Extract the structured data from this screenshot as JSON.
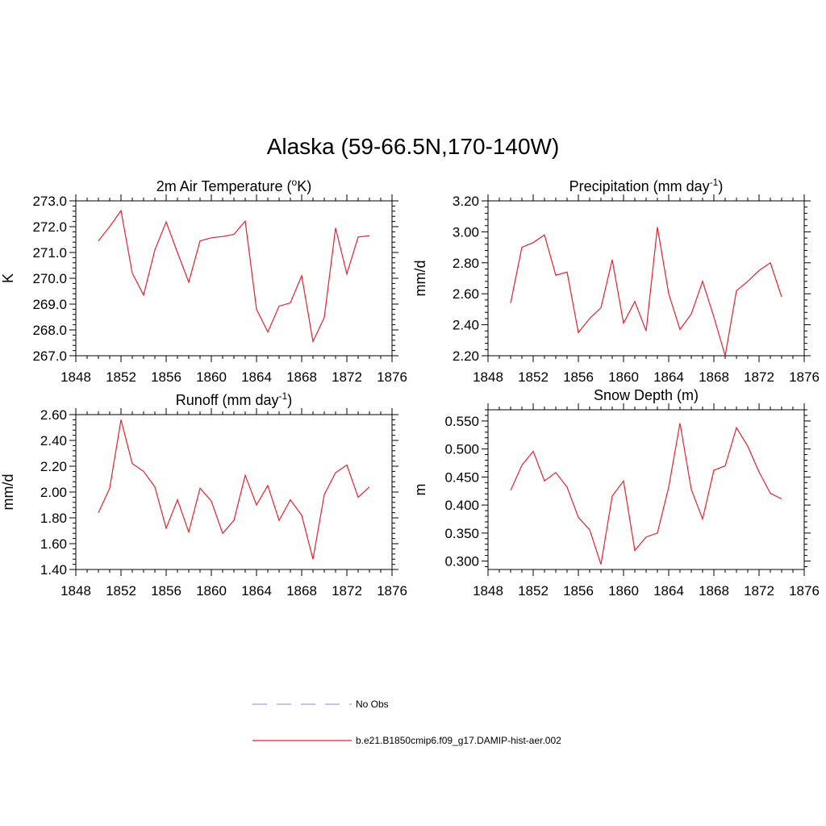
{
  "title": "Alaska (59-66.5N,170-140W)",
  "colors": {
    "model_line": "#e8202a",
    "obs_line": "#9aa3ee",
    "axis": "#000000"
  },
  "legend": {
    "entries": [
      {
        "label": "No Obs",
        "style": "dashed",
        "color": "#9aa3ee"
      },
      {
        "label": "b.e21.B1850cmip6.f09_g17.DAMIP-hist-aer.002",
        "style": "solid",
        "color": "#e8202a"
      }
    ]
  },
  "chart_data": [
    {
      "type": "line",
      "title": "2m Air Temperature (",
      "title_sup": "o",
      "title_after": "K)",
      "ylabel": "K",
      "xlim": [
        1848,
        1876
      ],
      "ylim": [
        267.0,
        273.0
      ],
      "xticks": [
        1848,
        1852,
        1856,
        1860,
        1864,
        1868,
        1872,
        1876
      ],
      "yticks": [
        "267.0",
        "268.0",
        "269.0",
        "270.0",
        "271.0",
        "272.0",
        "273.0"
      ],
      "x": [
        1850,
        1851,
        1852,
        1853,
        1854,
        1855,
        1856,
        1857,
        1858,
        1859,
        1860,
        1861,
        1862,
        1863,
        1864,
        1865,
        1866,
        1867,
        1868,
        1869,
        1870,
        1871,
        1872,
        1873,
        1874
      ],
      "series": [
        {
          "name": "b.e21.B1850cmip6.f09_g17.DAMIP-hist-aer.002",
          "values": [
            271.45,
            272.0,
            272.62,
            270.2,
            269.35,
            271.1,
            272.18,
            271.0,
            269.85,
            271.45,
            271.57,
            271.62,
            271.7,
            272.22,
            268.8,
            267.92,
            268.92,
            269.05,
            270.1,
            267.55,
            268.48,
            271.95,
            270.17,
            271.6,
            271.65
          ]
        }
      ]
    },
    {
      "type": "line",
      "title": "Precipitation (mm day",
      "title_sup": "-1",
      "title_after": ")",
      "ylabel": "mm/d",
      "xlim": [
        1848,
        1876
      ],
      "ylim": [
        2.2,
        3.2
      ],
      "xticks": [
        1848,
        1852,
        1856,
        1860,
        1864,
        1868,
        1872,
        1876
      ],
      "yticks": [
        "2.20",
        "2.40",
        "2.60",
        "2.80",
        "3.00",
        "3.20"
      ],
      "x": [
        1850,
        1851,
        1852,
        1853,
        1854,
        1855,
        1856,
        1857,
        1858,
        1859,
        1860,
        1861,
        1862,
        1863,
        1864,
        1865,
        1866,
        1867,
        1868,
        1869,
        1870,
        1871,
        1872,
        1873,
        1874
      ],
      "series": [
        {
          "name": "b.e21.B1850cmip6.f09_g17.DAMIP-hist-aer.002",
          "values": [
            2.54,
            2.9,
            2.93,
            2.98,
            2.72,
            2.74,
            2.35,
            2.44,
            2.51,
            2.82,
            2.41,
            2.55,
            2.36,
            3.03,
            2.6,
            2.37,
            2.47,
            2.68,
            2.45,
            2.2,
            2.62,
            2.68,
            2.75,
            2.8,
            2.58
          ]
        }
      ]
    },
    {
      "type": "line",
      "title": "Runoff (mm day",
      "title_sup": "-1",
      "title_after": ")",
      "ylabel": "mm/d",
      "xlim": [
        1848,
        1876
      ],
      "ylim": [
        1.4,
        2.6
      ],
      "xticks": [
        1848,
        1852,
        1856,
        1860,
        1864,
        1868,
        1872,
        1876
      ],
      "yticks": [
        "1.40",
        "1.60",
        "1.80",
        "2.00",
        "2.20",
        "2.40",
        "2.60"
      ],
      "x": [
        1850,
        1851,
        1852,
        1853,
        1854,
        1855,
        1856,
        1857,
        1858,
        1859,
        1860,
        1861,
        1862,
        1863,
        1864,
        1865,
        1866,
        1867,
        1868,
        1869,
        1870,
        1871,
        1872,
        1873,
        1874
      ],
      "series": [
        {
          "name": "b.e21.B1850cmip6.f09_g17.DAMIP-hist-aer.002",
          "values": [
            1.84,
            2.03,
            2.56,
            2.22,
            2.16,
            2.04,
            1.72,
            1.94,
            1.69,
            2.03,
            1.93,
            1.68,
            1.78,
            2.13,
            1.9,
            2.05,
            1.78,
            1.94,
            1.82,
            1.48,
            1.98,
            2.15,
            2.21,
            1.96,
            2.04
          ]
        }
      ]
    },
    {
      "type": "line",
      "title": "Snow Depth (m)",
      "title_sup": "",
      "title_after": "",
      "ylabel": "m",
      "xlim": [
        1848,
        1876
      ],
      "ylim": [
        0.285,
        0.57
      ],
      "xticks": [
        1848,
        1852,
        1856,
        1860,
        1864,
        1868,
        1872,
        1876
      ],
      "yticks": [
        "0.300",
        "0.350",
        "0.400",
        "0.450",
        "0.500",
        "0.550"
      ],
      "x": [
        1850,
        1851,
        1852,
        1853,
        1854,
        1855,
        1856,
        1857,
        1858,
        1859,
        1860,
        1861,
        1862,
        1863,
        1864,
        1865,
        1866,
        1867,
        1868,
        1869,
        1870,
        1871,
        1872,
        1873,
        1874
      ],
      "series": [
        {
          "name": "b.e21.B1850cmip6.f09_g17.DAMIP-hist-aer.002",
          "values": [
            0.426,
            0.471,
            0.496,
            0.443,
            0.458,
            0.432,
            0.378,
            0.356,
            0.294,
            0.416,
            0.443,
            0.319,
            0.343,
            0.35,
            0.432,
            0.546,
            0.428,
            0.375,
            0.462,
            0.47,
            0.538,
            0.505,
            0.459,
            0.421,
            0.411
          ]
        }
      ]
    }
  ]
}
